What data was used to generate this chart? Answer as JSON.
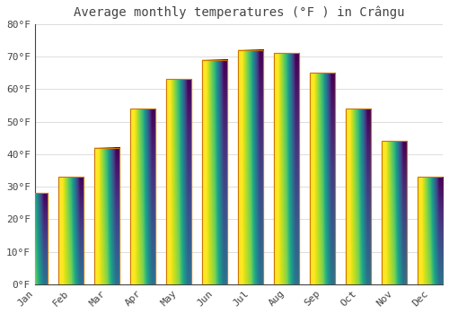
{
  "title": "Average monthly temperatures (°F ) in Crângu",
  "months": [
    "Jan",
    "Feb",
    "Mar",
    "Apr",
    "May",
    "Jun",
    "Jul",
    "Aug",
    "Sep",
    "Oct",
    "Nov",
    "Dec"
  ],
  "values": [
    28,
    33,
    42,
    54,
    63,
    69,
    72,
    71,
    65,
    54,
    44,
    33
  ],
  "bar_color": "#FFA500",
  "bar_color_light": "#FFD060",
  "bar_edge_color": "#CC7700",
  "background_color": "#FFFFFF",
  "grid_color": "#DDDDDD",
  "text_color": "#444444",
  "ylim": [
    0,
    80
  ],
  "yticks": [
    0,
    10,
    20,
    30,
    40,
    50,
    60,
    70,
    80
  ],
  "title_fontsize": 10,
  "tick_fontsize": 8,
  "figwidth": 5.0,
  "figheight": 3.5,
  "dpi": 100
}
